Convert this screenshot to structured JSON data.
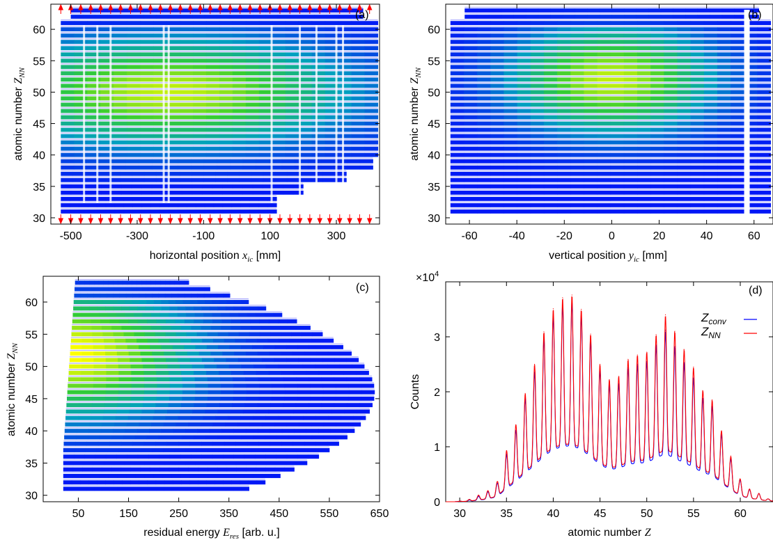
{
  "chart_data": [
    {
      "type": "heatmap",
      "panel_label": "(a)",
      "xlabel": "horizontal position",
      "xlabel_var": "x",
      "xlabel_sub": "ic",
      "xlabel_unit": "[mm]",
      "ylabel": "atomic number",
      "ylabel_var": "Z",
      "ylabel_sub": "NN",
      "xlim": [
        -560,
        430
      ],
      "ylim": [
        29,
        64
      ],
      "x_ticks": [
        -500,
        -300,
        -100,
        100,
        300
      ],
      "y_ticks": [
        30,
        35,
        40,
        45,
        50,
        55,
        60
      ],
      "grid": false,
      "data_x_range": [
        -530,
        425
      ],
      "data_z_range": [
        31,
        63
      ],
      "density_peak_x": -200,
      "density_peak_z": 50,
      "vertical_gaps_x": [
        -460,
        -420,
        -380,
        -220,
        -205,
        105,
        190,
        240,
        300,
        320
      ],
      "arrow_markers": true,
      "arrow_color": "#ff0000",
      "colormap": [
        "#0000ff",
        "#00a0c0",
        "#33cc33",
        "#ffff00"
      ]
    },
    {
      "type": "heatmap",
      "panel_label": "(b)",
      "xlabel": "vertical position",
      "xlabel_var": "y",
      "xlabel_sub": "ic",
      "xlabel_unit": "[mm]",
      "ylabel": "atomic number",
      "ylabel_var": "Z",
      "ylabel_sub": "NN",
      "xlim": [
        -70,
        68
      ],
      "ylim": [
        29,
        64
      ],
      "x_ticks": [
        -60,
        -40,
        -20,
        0,
        20,
        40,
        60
      ],
      "y_ticks": [
        30,
        35,
        40,
        45,
        50,
        55,
        60
      ],
      "grid": false,
      "data_x_range": [
        -68,
        67
      ],
      "data_z_range": [
        31,
        63
      ],
      "density_peak_x": 0,
      "density_peak_z": 52,
      "vertical_gaps_x": [
        57
      ],
      "colormap": [
        "#0000ff",
        "#00a0c0",
        "#33cc33",
        "#ffff00"
      ]
    },
    {
      "type": "heatmap",
      "panel_label": "(c)",
      "xlabel": "residual energy",
      "xlabel_var": "E",
      "xlabel_sub": "res",
      "xlabel_unit": "[arb. u.]",
      "ylabel": "atomic number",
      "ylabel_var": "Z",
      "ylabel_sub": "NN",
      "xlim": [
        -20,
        650
      ],
      "ylim": [
        29,
        64
      ],
      "x_ticks": [
        50,
        150,
        250,
        350,
        450,
        550,
        650
      ],
      "y_ticks": [
        30,
        35,
        40,
        45,
        50,
        55,
        60
      ],
      "grid": false,
      "data_x_range": [
        20,
        640
      ],
      "data_z_range": [
        31,
        63
      ],
      "density_peak_x": 40,
      "density_peak_z": 52,
      "colormap": [
        "#0000ff",
        "#00a0c0",
        "#33cc33",
        "#ffff00"
      ]
    },
    {
      "type": "line",
      "panel_label": "(d)",
      "xlabel": "atomic number",
      "xlabel_var": "Z",
      "ylabel": "Counts",
      "y_multiplier": "×10",
      "y_multiplier_exp": "4",
      "xlim": [
        28.5,
        63.5
      ],
      "ylim": [
        0,
        40000
      ],
      "x_ticks": [
        30,
        35,
        40,
        45,
        50,
        55,
        60
      ],
      "y_ticks": [
        0,
        10000,
        20000,
        30000
      ],
      "y_tick_labels": [
        "0",
        "1",
        "2",
        "3"
      ],
      "grid": false,
      "legend_position": "top-right",
      "series": [
        {
          "name": "conv",
          "legend_var": "Z",
          "legend_sub": "conv",
          "color": "#0000ff",
          "x": [
            30,
            31,
            32,
            33,
            34,
            35,
            36,
            37,
            38,
            39,
            40,
            41,
            42,
            43,
            44,
            45,
            46,
            47,
            48,
            49,
            50,
            51,
            52,
            53,
            54,
            55,
            56,
            57,
            58,
            59,
            60,
            61,
            62,
            63
          ],
          "values": [
            100,
            300,
            1000,
            1800,
            3300,
            8600,
            13000,
            18800,
            23600,
            29700,
            33900,
            35900,
            36400,
            33900,
            29400,
            24000,
            21200,
            21500,
            24400,
            25000,
            25500,
            28500,
            31200,
            28200,
            25300,
            22500,
            18800,
            17400,
            12200,
            7800,
            3900,
            2200,
            1500,
            500
          ]
        },
        {
          "name": "NN",
          "legend_var": "Z",
          "legend_sub": "NN",
          "color": "#ff0000",
          "x": [
            30,
            31,
            32,
            33,
            34,
            35,
            36,
            37,
            38,
            39,
            40,
            41,
            42,
            43,
            44,
            45,
            46,
            47,
            48,
            49,
            50,
            51,
            52,
            53,
            54,
            55,
            56,
            57,
            58,
            59,
            60,
            61,
            62,
            63
          ],
          "values": [
            100,
            400,
            1200,
            2000,
            3600,
            9300,
            14000,
            19700,
            25000,
            30900,
            35100,
            37100,
            37600,
            35000,
            30500,
            25000,
            22200,
            22800,
            25900,
            26700,
            27200,
            30400,
            34000,
            31000,
            27700,
            24500,
            20200,
            18500,
            12900,
            8200,
            4100,
            2300,
            1500,
            500
          ]
        }
      ]
    }
  ]
}
